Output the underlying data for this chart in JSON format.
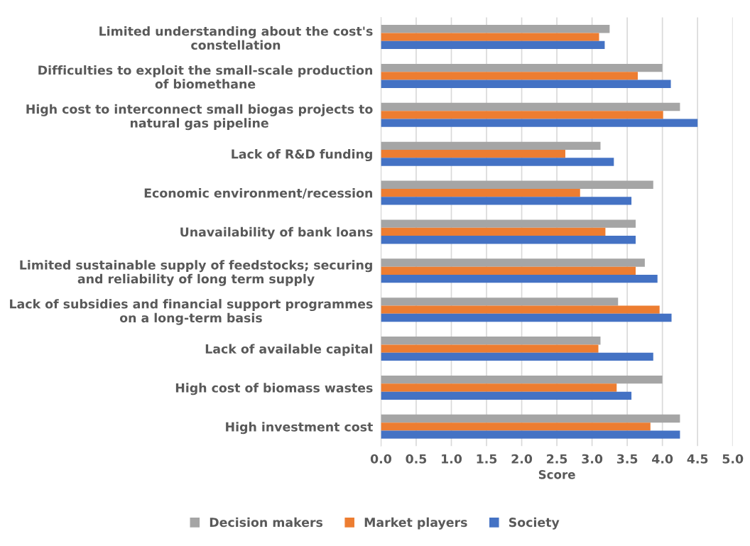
{
  "chart_data": {
    "type": "bar",
    "orientation": "horizontal",
    "xlabel": "Score",
    "categories": [
      "Limited understanding about the cost's constellation",
      "Difficulties to exploit the small-scale production of biomethane",
      "High cost to interconnect small biogas projects to natural gas pipeline",
      "Lack of R&D funding",
      "Economic environment/recession",
      "Unavailability of bank loans",
      "Limited sustainable supply of feedstocks; securing and reliability of long term supply",
      "Lack of subsidies and financial support programmes on a long-term basis",
      "Lack of available capital",
      "High cost of biomass wastes",
      "High investment cost"
    ],
    "series": [
      {
        "name": "Decision makers",
        "color": "#a5a5a5",
        "values": [
          3.25,
          4.0,
          4.25,
          3.12,
          3.87,
          3.62,
          3.75,
          3.37,
          3.12,
          4.0,
          4.25
        ]
      },
      {
        "name": "Market players",
        "color": "#ed7d31",
        "values": [
          3.1,
          3.65,
          4.01,
          2.62,
          2.83,
          3.19,
          3.62,
          3.96,
          3.09,
          3.35,
          3.83
        ]
      },
      {
        "name": "Society",
        "color": "#4472c4",
        "values": [
          3.18,
          4.12,
          4.5,
          3.31,
          3.56,
          3.62,
          3.93,
          4.13,
          3.87,
          3.56,
          4.25
        ]
      }
    ],
    "xlim": [
      0,
      5
    ],
    "xticks": [
      {
        "value": 0,
        "label": "0.0"
      },
      {
        "value": 0.5,
        "label": "0.5"
      },
      {
        "value": 1,
        "label": "1.0"
      },
      {
        "value": 1.5,
        "label": "1.5"
      },
      {
        "value": 2,
        "label": "2.0"
      },
      {
        "value": 2.5,
        "label": "2.5"
      },
      {
        "value": 3,
        "label": "3.0"
      },
      {
        "value": 3.5,
        "label": "3.5"
      },
      {
        "value": 4,
        "label": "4.0"
      },
      {
        "value": 4.5,
        "label": "4.5"
      },
      {
        "value": 5,
        "label": "5.0"
      }
    ],
    "grid": "x",
    "legend": "bottom"
  }
}
